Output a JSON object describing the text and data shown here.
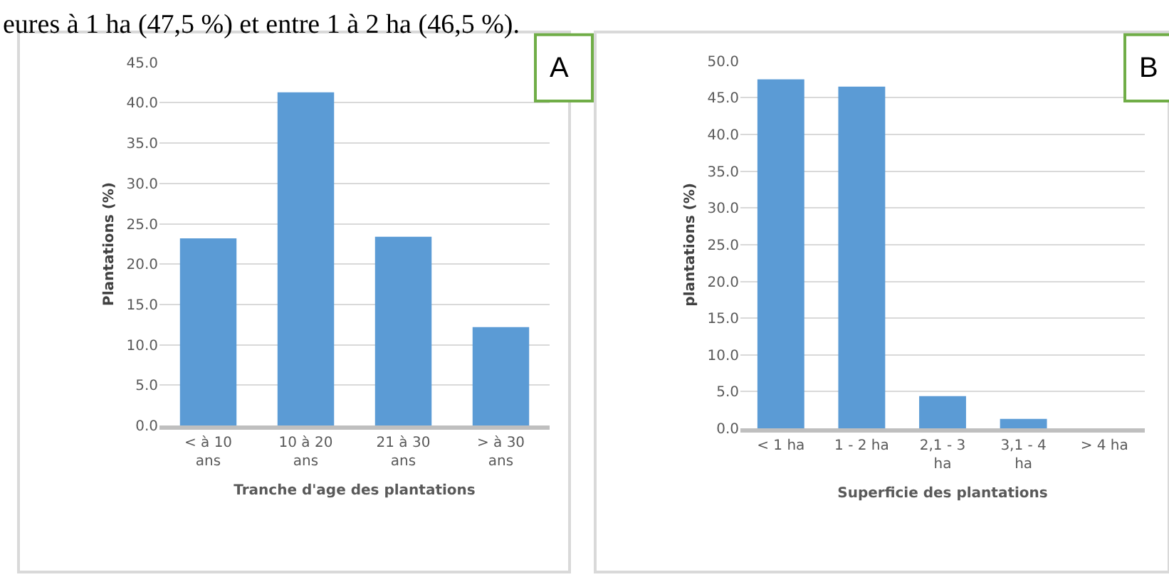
{
  "chart_data": [
    {
      "type": "bar",
      "categories": [
        "< à 10 ans",
        "10 à 20 ans",
        "21 à 30 ans",
        "> à 30 ans"
      ],
      "values": [
        23.2,
        41.3,
        23.4,
        12.2
      ],
      "color": "#5b9bd5",
      "xlabel": "Tranche d'age des plantations",
      "ylabel": "Plantations (%)",
      "ylim": [
        0,
        45
      ],
      "yticks": [
        {
          "value": 0,
          "label": "0.0"
        },
        {
          "value": 5,
          "label": "5.0"
        },
        {
          "value": 10,
          "label": "10.0"
        },
        {
          "value": 15,
          "label": "15.0"
        },
        {
          "value": 20,
          "label": "20.0"
        },
        {
          "value": 25,
          "label": "25.0"
        },
        {
          "value": 30,
          "label": "30.0"
        },
        {
          "value": 35,
          "label": "35.0"
        },
        {
          "value": 40,
          "label": "40.0"
        },
        {
          "value": 45,
          "label": "45.0"
        }
      ],
      "grid": "y",
      "annotations": [
        "eures à 1 ha (47,5 %) et entre 1 à 2 ha (46,5 %).",
        "A"
      ]
    },
    {
      "type": "bar",
      "categories": [
        "< 1 ha",
        "1 - 2 ha",
        "2,1 - 3 ha",
        "3,1 - 4 ha",
        "> 4 ha"
      ],
      "values": [
        47.5,
        46.5,
        4.4,
        1.3,
        0
      ],
      "color": "#5b9bd5",
      "xlabel": "Superficie des plantations",
      "ylabel": "plantations (%)",
      "ylim": [
        0,
        50
      ],
      "yticks": [
        {
          "value": 0,
          "label": "0.0"
        },
        {
          "value": 5,
          "label": "5.0"
        },
        {
          "value": 10,
          "label": "10.0"
        },
        {
          "value": 15,
          "label": "15.0"
        },
        {
          "value": 20,
          "label": "20.0"
        },
        {
          "value": 25,
          "label": "25.0"
        },
        {
          "value": 30,
          "label": "30.0"
        },
        {
          "value": 35,
          "label": "35.0"
        },
        {
          "value": 40,
          "label": "40.0"
        },
        {
          "value": 45,
          "label": "45.0"
        },
        {
          "value": 50,
          "label": "50.0"
        }
      ],
      "grid": "y",
      "annotations": [
        "B"
      ]
    }
  ]
}
